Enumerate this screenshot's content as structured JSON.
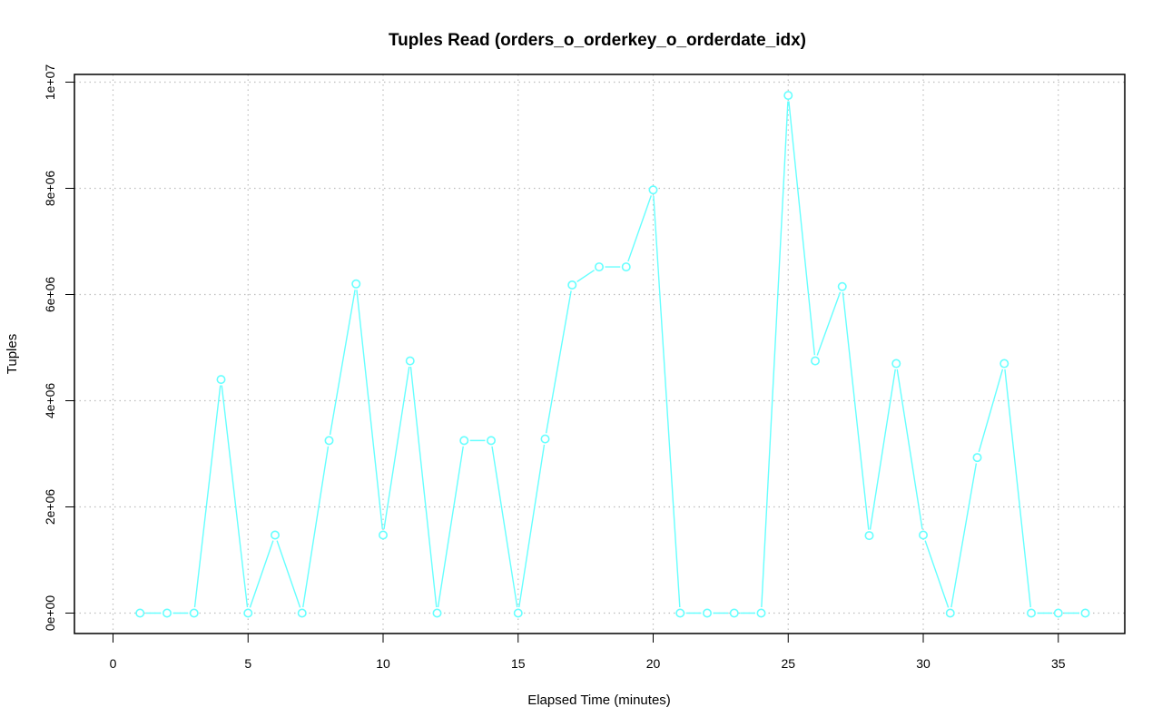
{
  "chart_data": {
    "type": "line",
    "title": "Tuples Read (orders_o_orderkey_o_orderdate_idx)",
    "xlabel": "Elapsed Time (minutes)",
    "ylabel": "Tuples",
    "xlim": [
      0,
      36
    ],
    "ylim": [
      0,
      10000000
    ],
    "x_ticks": [
      0,
      5,
      10,
      15,
      20,
      25,
      30,
      35
    ],
    "x_tick_labels": [
      "0",
      "5",
      "10",
      "15",
      "20",
      "25",
      "30",
      "35"
    ],
    "y_ticks": [
      0,
      2000000,
      4000000,
      6000000,
      8000000,
      10000000
    ],
    "y_tick_labels": [
      "0e+00",
      "2e+06",
      "4e+06",
      "6e+06",
      "8e+06",
      "1e+07"
    ],
    "grid": true,
    "series": [
      {
        "color": "#66ffff",
        "marker": "open-circle",
        "x": [
          1,
          2,
          3,
          4,
          5,
          6,
          7,
          8,
          9,
          10,
          11,
          12,
          13,
          14,
          15,
          16,
          17,
          18,
          19,
          20,
          21,
          22,
          23,
          24,
          25,
          26,
          27,
          28,
          29,
          30,
          31,
          32,
          33,
          34,
          35,
          36
        ],
        "values": [
          0,
          0,
          0,
          4400000,
          0,
          1470000,
          0,
          3250000,
          6200000,
          1470000,
          4750000,
          0,
          3250000,
          3250000,
          0,
          3280000,
          6180000,
          6520000,
          6520000,
          7970000,
          0,
          0,
          0,
          0,
          9750000,
          4750000,
          6150000,
          1460000,
          4700000,
          1470000,
          0,
          2930000,
          4700000,
          0,
          0,
          0
        ]
      }
    ]
  }
}
